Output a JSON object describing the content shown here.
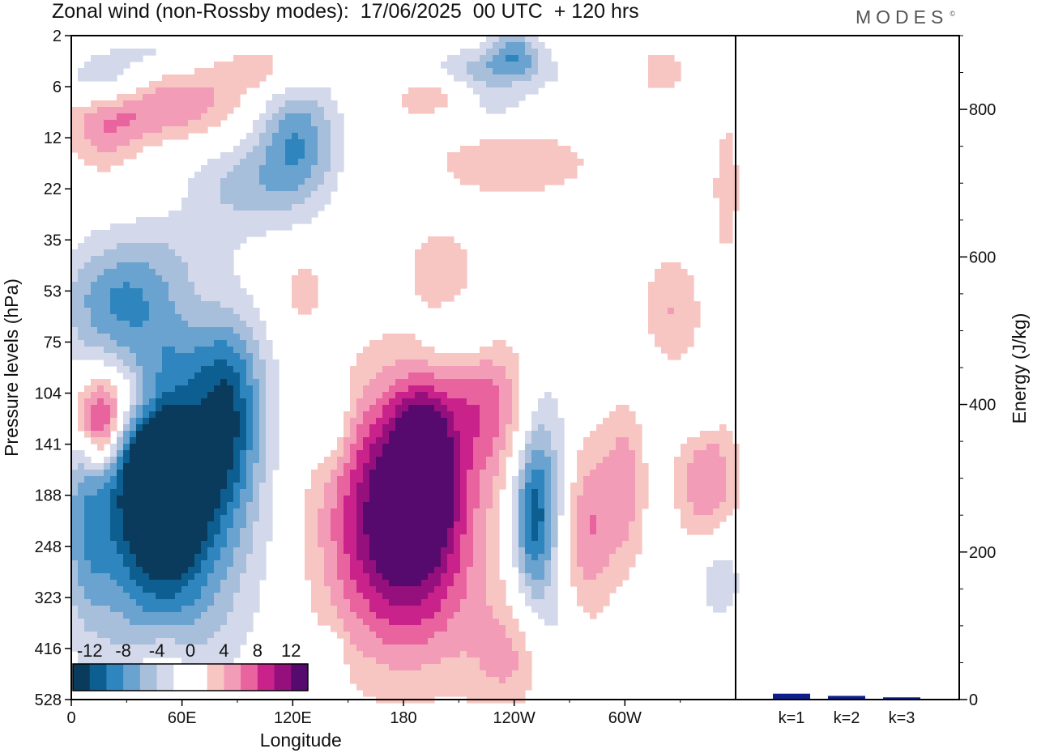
{
  "header": {
    "title": "Zonal wind (non-Rossby modes):  17/06/2025  00 UTC  + 120 hrs",
    "brand": "MODES",
    "brand_mark": "©"
  },
  "colors": {
    "levels": [
      "#0a3a5c",
      "#0e5f91",
      "#2f86bf",
      "#6aa3cf",
      "#a8bfdc",
      "#d3d8ea",
      "#ffffff",
      "#ffffff",
      "#f7c6c2",
      "#f39cb7",
      "#e9649f",
      "#c9238b",
      "#96107d",
      "#560a6e"
    ],
    "bar": "#0f1f8a"
  },
  "chart_data": [
    {
      "type": "heatmap",
      "title": "Zonal wind (non-Rossby modes):  17/06/2025  00 UTC  + 120 hrs",
      "xlabel": "Longitude",
      "ylabel": "Pressure levels (hPa)",
      "x_ticks": [
        "0",
        "60E",
        "120E",
        "180",
        "120W",
        "60W"
      ],
      "x_tick_values": [
        0,
        60,
        120,
        180,
        240,
        300
      ],
      "xlim": [
        0,
        360
      ],
      "y_levels": [
        "2",
        "6",
        "12",
        "22",
        "35",
        "53",
        "75",
        "104",
        "141",
        "188",
        "248",
        "323",
        "416",
        "528"
      ],
      "colorbar": {
        "tick_labels": [
          "-12",
          "-8",
          "-4",
          "0",
          "4",
          "8",
          "12"
        ],
        "bounds": [
          -14,
          -12,
          -10,
          -8,
          -6,
          -4,
          -2,
          0,
          2,
          4,
          6,
          8,
          10,
          12,
          14
        ]
      },
      "features": [
        {
          "lon": 50,
          "level": 8.4,
          "value": -16,
          "sx": 16,
          "sy": 1.2
        },
        {
          "lon": 60,
          "level": 8.9,
          "value": -7,
          "sx": 34,
          "sy": 2.2
        },
        {
          "lon": 85,
          "level": 7.4,
          "value": -8,
          "sx": 12,
          "sy": 1.2
        },
        {
          "lon": 8,
          "level": 9.6,
          "value": -5,
          "sx": 10,
          "sy": 1.4
        },
        {
          "lon": 45,
          "level": 10.4,
          "value": -5,
          "sx": 24,
          "sy": 1.6
        },
        {
          "lon": 36,
          "level": 6.6,
          "value": -4,
          "sx": 40,
          "sy": 0.7
        },
        {
          "lon": 25,
          "level": 5.2,
          "value": -6,
          "sx": 22,
          "sy": 0.6
        },
        {
          "lon": 40,
          "level": 4.3,
          "value": -3,
          "sx": 28,
          "sy": 0.6
        },
        {
          "lon": 122,
          "level": 2.1,
          "value": -8,
          "sx": 16,
          "sy": 0.9
        },
        {
          "lon": 90,
          "level": 3.0,
          "value": -4,
          "sx": 20,
          "sy": 0.6
        },
        {
          "lon": 18,
          "level": 1.0,
          "value": -5,
          "sx": 16,
          "sy": 0.35
        },
        {
          "lon": 65,
          "level": 0.35,
          "value": -3,
          "sx": 40,
          "sy": 0.3
        },
        {
          "lon": 210,
          "level": 0.7,
          "value": -6,
          "sx": 35,
          "sy": 0.3
        },
        {
          "lon": 240,
          "level": 0.3,
          "value": -6,
          "sx": 10,
          "sy": 0.3
        },
        {
          "lon": 225,
          "level": 1.4,
          "value": -3,
          "sx": 20,
          "sy": 0.3
        },
        {
          "lon": 140,
          "level": 7.5,
          "value": -4,
          "sx": 8,
          "sy": 0.6
        },
        {
          "lon": 210,
          "level": 6.0,
          "value": -3,
          "sx": 14,
          "sy": 0.4
        },
        {
          "lon": 250,
          "level": 9.5,
          "value": -9,
          "sx": 8,
          "sy": 1.2
        },
        {
          "lon": 258,
          "level": 8.5,
          "value": -4,
          "sx": 10,
          "sy": 1.6
        },
        {
          "lon": 350,
          "level": 10.5,
          "value": -5,
          "sx": 10,
          "sy": 0.7
        },
        {
          "lon": 342,
          "level": 7.2,
          "value": -4,
          "sx": 8,
          "sy": 0.5
        },
        {
          "lon": 262,
          "level": 12.3,
          "value": -3,
          "sx": 8,
          "sy": 0.9
        },
        {
          "lon": 305,
          "level": 6.5,
          "value": -3,
          "sx": 8,
          "sy": 0.4
        },
        {
          "lon": 142,
          "level": 12.2,
          "value": -3,
          "sx": 4,
          "sy": 0.4
        },
        {
          "lon": 32,
          "level": 7.1,
          "value": 9,
          "sx": 26,
          "sy": 0.6
        },
        {
          "lon": 16,
          "level": 7.7,
          "value": 9,
          "sx": 8,
          "sy": 0.6
        },
        {
          "lon": 190,
          "level": 8.5,
          "value": 15,
          "sx": 9,
          "sy": 0.8
        },
        {
          "lon": 185,
          "level": 8.9,
          "value": 9,
          "sx": 22,
          "sy": 1.6
        },
        {
          "lon": 165,
          "level": 9.5,
          "value": 6,
          "sx": 28,
          "sy": 1.8
        },
        {
          "lon": 190,
          "level": 10.5,
          "value": 4,
          "sx": 30,
          "sy": 1.6
        },
        {
          "lon": 225,
          "level": 7.2,
          "value": 6,
          "sx": 18,
          "sy": 1.0
        },
        {
          "lon": 280,
          "level": 9.6,
          "value": 6,
          "sx": 10,
          "sy": 1.2
        },
        {
          "lon": 300,
          "level": 8.8,
          "value": 5,
          "sx": 8,
          "sy": 1.2
        },
        {
          "lon": 345,
          "level": 8.8,
          "value": 6,
          "sx": 12,
          "sy": 1.2
        },
        {
          "lon": 238,
          "level": 12.2,
          "value": 4,
          "sx": 16,
          "sy": 0.8
        },
        {
          "lon": 50,
          "level": 12.6,
          "value": 4,
          "sx": 12,
          "sy": 0.7
        },
        {
          "lon": 48,
          "level": 1.4,
          "value": 6,
          "sx": 30,
          "sy": 0.45
        },
        {
          "lon": 18,
          "level": 1.9,
          "value": 4,
          "sx": 14,
          "sy": 0.6
        },
        {
          "lon": 100,
          "level": 0.55,
          "value": 5,
          "sx": 26,
          "sy": 0.4
        },
        {
          "lon": 195,
          "level": 1.0,
          "value": 6,
          "sx": 16,
          "sy": 0.4
        },
        {
          "lon": 320,
          "level": 0.7,
          "value": 4,
          "sx": 8,
          "sy": 0.3
        },
        {
          "lon": 240,
          "level": 2.5,
          "value": 3,
          "sx": 40,
          "sy": 0.6
        },
        {
          "lon": 200,
          "level": 4.5,
          "value": 3,
          "sx": 14,
          "sy": 0.6
        },
        {
          "lon": 325,
          "level": 5.4,
          "value": 4,
          "sx": 12,
          "sy": 0.8
        },
        {
          "lon": 125,
          "level": 5.0,
          "value": 3,
          "sx": 10,
          "sy": 0.6
        },
        {
          "lon": 355,
          "level": 3.0,
          "value": 3,
          "sx": 6,
          "sy": 1.2
        }
      ]
    },
    {
      "type": "bar",
      "categories": [
        "k=1",
        "k=2",
        "k=3"
      ],
      "values": [
        8,
        5,
        3
      ],
      "ylabel": "Energy (J/kg)",
      "ylim": [
        0,
        900
      ],
      "y_ticks": [
        0,
        200,
        400,
        600,
        800
      ],
      "y_tick_labels": [
        "0",
        "200",
        "400",
        "600",
        "800"
      ]
    }
  ]
}
